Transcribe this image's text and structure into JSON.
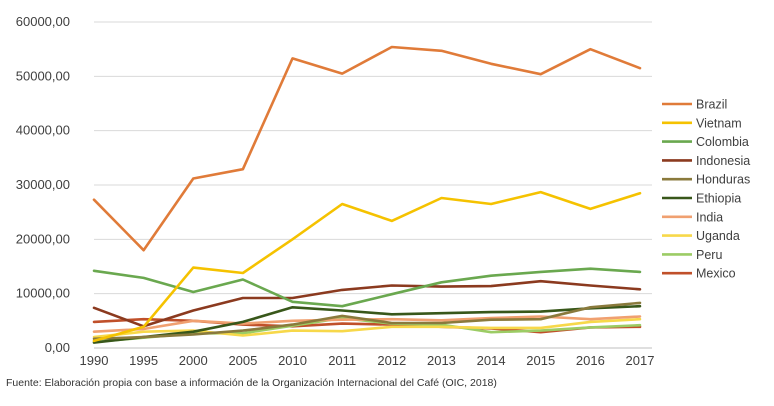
{
  "chart_data": {
    "type": "line",
    "x": [
      "1990",
      "1995",
      "2000",
      "2005",
      "2010",
      "2011",
      "2012",
      "2013",
      "2014",
      "2015",
      "2016",
      "2017"
    ],
    "ylim": [
      0,
      60000
    ],
    "yticks": [
      "0,00",
      "10000,00",
      "20000,00",
      "30000,00",
      "40000,00",
      "50000,00",
      "60000,00"
    ],
    "grid": true,
    "legend_position": "right",
    "series": [
      {
        "name": "Brazil",
        "color": "#e07b39",
        "values": [
          27300,
          18000,
          31200,
          32900,
          53300,
          50500,
          55400,
          54700,
          52300,
          50400,
          55000,
          51500
        ]
      },
      {
        "name": "Vietnam",
        "color": "#f5c200",
        "values": [
          1300,
          3900,
          14800,
          13800,
          20000,
          26500,
          23400,
          27600,
          26500,
          28700,
          25600,
          28500
        ]
      },
      {
        "name": "Colombia",
        "color": "#6aa84f",
        "values": [
          14200,
          12900,
          10300,
          12600,
          8500,
          7700,
          9900,
          12100,
          13300,
          14000,
          14600,
          14000
        ]
      },
      {
        "name": "Indonesia",
        "color": "#8b3a1f",
        "values": [
          7400,
          4000,
          6900,
          9200,
          9200,
          10700,
          11500,
          11300,
          11400,
          12300,
          11500,
          10800
        ]
      },
      {
        "name": "Honduras",
        "color": "#8a7a3c",
        "values": [
          1700,
          2000,
          2500,
          3200,
          4300,
          5900,
          4600,
          4600,
          5200,
          5300,
          7500,
          8300
        ]
      },
      {
        "name": "Ethiopia",
        "color": "#38571a",
        "values": [
          1000,
          2000,
          3000,
          4800,
          7500,
          6900,
          6200,
          6400,
          6600,
          6700,
          7300,
          7700
        ]
      },
      {
        "name": "India",
        "color": "#f0a070",
        "values": [
          3000,
          3500,
          5000,
          4500,
          5000,
          5200,
          5300,
          5100,
          5500,
          5800,
          5300,
          5800
        ]
      },
      {
        "name": "Uganda",
        "color": "#f7d84a",
        "values": [
          2000,
          3000,
          3200,
          2300,
          3200,
          3100,
          3900,
          3900,
          3700,
          3700,
          4800,
          5300
        ]
      },
      {
        "name": "Peru",
        "color": "#9ccc65",
        "values": [
          1100,
          1900,
          2700,
          2700,
          4100,
          5500,
          4500,
          4300,
          2900,
          3200,
          3800,
          4200
        ]
      },
      {
        "name": "Mexico",
        "color": "#c0502a",
        "values": [
          4800,
          5300,
          5000,
          4300,
          4000,
          4500,
          4300,
          3900,
          3600,
          2900,
          3800,
          3900
        ]
      }
    ],
    "source": "Fuente: Elaboración propia con base a información de la Organización Internacional del Café (OIC, 2018)"
  }
}
